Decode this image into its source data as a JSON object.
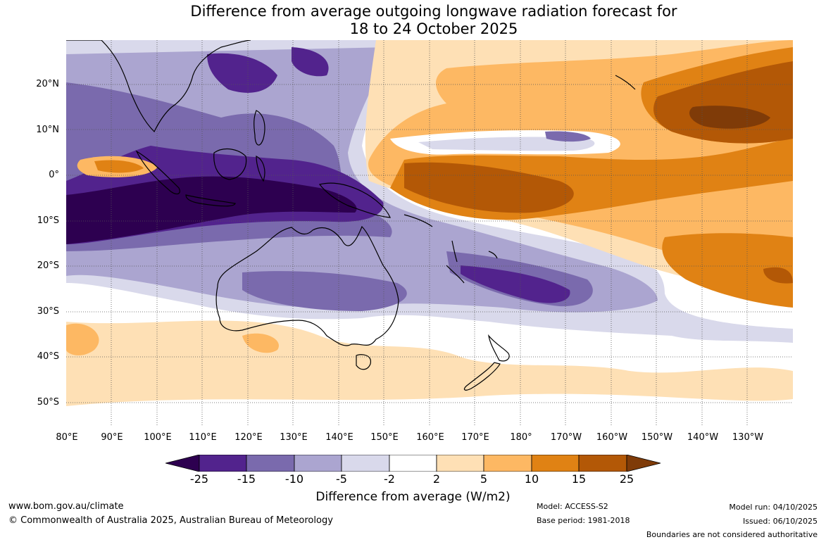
{
  "title": {
    "line1": "Difference from average outgoing longwave radiation forecast for",
    "line2": "18 to 24 October 2025"
  },
  "map": {
    "lat_labels": [
      "20°N",
      "10°N",
      "0°",
      "10°S",
      "20°S",
      "30°S",
      "40°S",
      "50°S"
    ],
    "lon_labels": [
      "80°E",
      "90°E",
      "100°E",
      "110°E",
      "120°E",
      "130°E",
      "140°E",
      "150°E",
      "160°E",
      "170°E",
      "180°",
      "170°W",
      "160°W",
      "150°W",
      "140°W",
      "130°W"
    ]
  },
  "colorbar": {
    "labels": [
      "-25",
      "-15",
      "-10",
      "-5",
      "-2",
      "2",
      "5",
      "10",
      "15",
      "25"
    ],
    "colors": [
      "#2d0050",
      "#52238d",
      "#7a6aad",
      "#aba5d0",
      "#d9d9eb",
      "#ffffff",
      "#fee0b5",
      "#fdb863",
      "#e08214",
      "#b35806",
      "#7f3b08"
    ],
    "title": "Difference from average (W/m2)"
  },
  "footer": {
    "website": "www.bom.gov.au/climate",
    "copyright": "© Commonwealth of Australia 2025, Australian Bureau of Meteorology",
    "model": "Model: ACCESS-S2",
    "base_period": "Base period: 1981-2018",
    "model_run": "Model run: 04/10/2025",
    "issued": "Issued: 06/10/2025",
    "disclaimer": "Boundaries are not considered authoritative"
  }
}
